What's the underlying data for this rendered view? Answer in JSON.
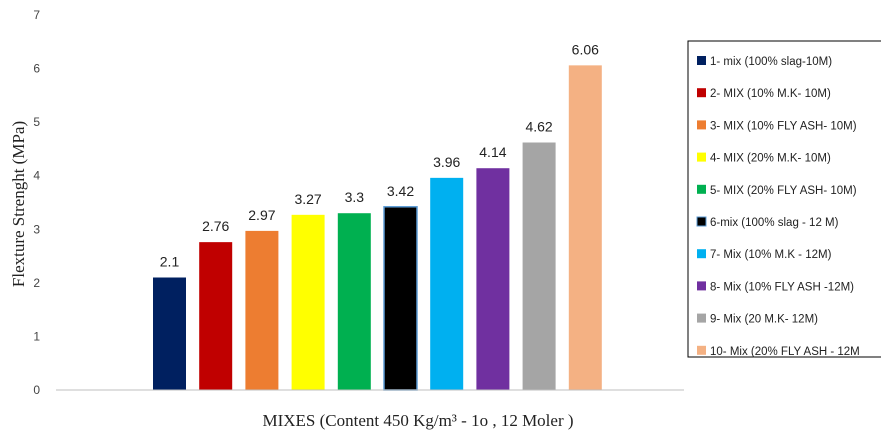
{
  "chart_data": {
    "type": "bar",
    "title": "",
    "xlabel": "MIXES (Content 450 Kg/m³ - 1o , 12 Moler )",
    "ylabel": "Flexture Strenght (MPa)",
    "ylim": [
      0,
      7
    ],
    "yticks": [
      "0",
      "1",
      "2",
      "3",
      "4",
      "5",
      "6",
      "7"
    ],
    "grid": false,
    "legend_position": "right",
    "categories": [
      "1- mix (100% slag-10M)",
      "2- MIX (10% M.K- 10M)",
      "3- MIX (10% FLY ASH- 10M)",
      "4- MIX (20% M.K- 10M)",
      "5- MIX (20% FLY ASH- 10M)",
      "6-mix (100% slag - 12 M)",
      "7- Mix (10% M.K - 12M)",
      "8- Mix (10% FLY ASH -12M)",
      "9- Mix (20 M.K- 12M)",
      "10- Mix (20% FLY ASH - 12M"
    ],
    "values": [
      2.1,
      2.76,
      2.97,
      3.27,
      3.3,
      3.42,
      3.96,
      4.14,
      4.62,
      6.06
    ],
    "data_labels": [
      "2.1",
      "2.76",
      "2.97",
      "3.27",
      "3.3",
      "3.42",
      "3.96",
      "4.14",
      "4.62",
      "6.06"
    ],
    "colors": [
      "#002060",
      "#c00000",
      "#ed7d31",
      "#ffff00",
      "#00b050",
      "#000000",
      "#00b0f0",
      "#7030a0",
      "#a5a5a5",
      "#f4b183"
    ],
    "bar_outlines": [
      "",
      "",
      "",
      "",
      "",
      "#5b9bd5",
      "",
      "",
      "",
      ""
    ]
  }
}
